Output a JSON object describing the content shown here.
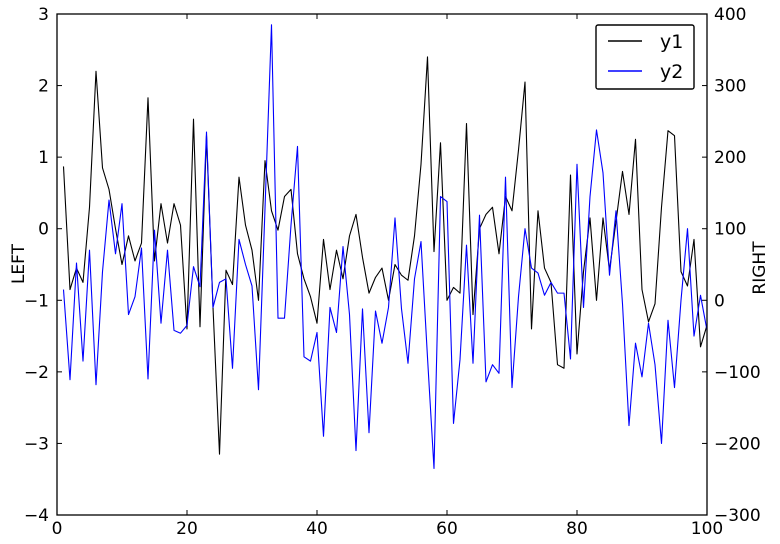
{
  "chart_data": {
    "type": "line",
    "title": "",
    "x_start": 1,
    "x_step": 1,
    "n_points": 100,
    "x_axis": {
      "lim": [
        0,
        100
      ],
      "ticks": [
        0,
        20,
        40,
        60,
        80,
        100
      ]
    },
    "left_axis": {
      "label": "LEFT",
      "lim": [
        -4,
        3
      ],
      "ticks": [
        3,
        2,
        1,
        0,
        -1,
        -2,
        -3,
        -4
      ]
    },
    "right_axis": {
      "label": "RIGHT",
      "lim": [
        -300,
        400
      ],
      "ticks": [
        400,
        300,
        200,
        100,
        0,
        -100,
        -200,
        -300
      ]
    },
    "legend": {
      "position": "upper-right",
      "entries": [
        "y1",
        "y2"
      ]
    },
    "grid": false,
    "background": "#ffffff",
    "series": [
      {
        "name": "y1",
        "color": "#000000",
        "axis": "left",
        "values": [
          0.87,
          -0.85,
          -0.55,
          -0.75,
          0.3,
          2.2,
          0.85,
          0.55,
          0.0,
          -0.5,
          -0.1,
          -0.45,
          -0.2,
          1.83,
          -0.45,
          0.35,
          -0.2,
          0.35,
          0.05,
          -1.4,
          1.53,
          -1.37,
          1.3,
          -1.1,
          -3.15,
          -0.58,
          -0.78,
          0.72,
          0.05,
          -0.3,
          -1.0,
          0.95,
          0.25,
          -0.02,
          0.45,
          0.55,
          -0.35,
          -0.7,
          -0.95,
          -1.32,
          -0.15,
          -0.85,
          -0.3,
          -0.7,
          -0.1,
          0.2,
          -0.4,
          -0.9,
          -0.68,
          -0.55,
          -1.0,
          -0.5,
          -0.65,
          -0.72,
          -0.1,
          0.9,
          2.4,
          -0.32,
          1.2,
          -1.0,
          -0.82,
          -0.9,
          1.47,
          -1.2,
          0.0,
          0.2,
          0.3,
          -0.35,
          0.45,
          0.25,
          1.1,
          2.05,
          -1.4,
          0.25,
          -0.55,
          -0.75,
          -1.9,
          -1.95,
          0.75,
          -1.75,
          -0.6,
          0.15,
          -1.0,
          0.15,
          -0.58,
          0.1,
          0.8,
          0.2,
          1.25,
          -0.85,
          -1.3,
          -1.05,
          0.3,
          1.37,
          1.3,
          -0.6,
          -0.8,
          -0.15,
          -1.65,
          -1.35
        ]
      },
      {
        "name": "y2",
        "color": "#0000ff",
        "axis": "right",
        "values": [
          15,
          -111,
          52,
          -85,
          70,
          -118,
          40,
          140,
          65,
          135,
          -20,
          5,
          73,
          -110,
          98,
          -32,
          70,
          -42,
          -46,
          -35,
          47,
          19,
          235,
          -10,
          25,
          30,
          -95,
          85,
          50,
          20,
          -125,
          128,
          385,
          -25,
          -25,
          105,
          215,
          -79,
          -85,
          -45,
          -190,
          -10,
          -45,
          75,
          -20,
          -210,
          -12,
          -185,
          -15,
          -60,
          -10,
          115,
          -12,
          -88,
          30,
          82,
          -80,
          -235,
          145,
          138,
          -172,
          -83,
          77,
          -88,
          119,
          -114,
          -90,
          -102,
          172,
          -122,
          5,
          100,
          45,
          38,
          7,
          25,
          10,
          10,
          -82,
          190,
          -10,
          145,
          238,
          178,
          35,
          125,
          -5,
          -175,
          -60,
          -107,
          -32,
          -90,
          -200,
          -28,
          -122,
          0,
          100,
          -50,
          7,
          -42
        ]
      }
    ]
  }
}
